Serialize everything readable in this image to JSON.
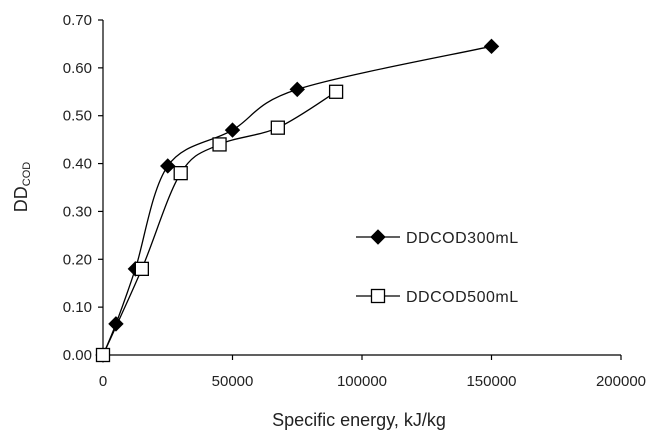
{
  "chart_data": {
    "type": "line",
    "title": "",
    "xlabel": "Specific energy, kJ/kg",
    "ylabel": {
      "main": "DD",
      "sub": "COD"
    },
    "xlim": [
      0,
      200000
    ],
    "ylim": [
      0,
      0.7
    ],
    "x_ticks": [
      0,
      50000,
      100000,
      150000,
      200000
    ],
    "x_tick_labels": [
      "0",
      "50000",
      "100000",
      "150000",
      "200000"
    ],
    "y_ticks": [
      0,
      0.1,
      0.2,
      0.3,
      0.4,
      0.5,
      0.6,
      0.7
    ],
    "y_tick_labels": [
      "0.00",
      "0.10",
      "0.20",
      "0.30",
      "0.40",
      "0.50",
      "0.60",
      "0.70"
    ],
    "grid": false,
    "legend_position": "right-middle",
    "series": [
      {
        "name": "DDCOD300mL",
        "marker": "filled-diamond",
        "color": "#000000",
        "points": [
          [
            0,
            0.0
          ],
          [
            5000,
            0.065
          ],
          [
            12500,
            0.18
          ],
          [
            25000,
            0.395
          ],
          [
            50000,
            0.47
          ],
          [
            75000,
            0.555
          ],
          [
            150000,
            0.645
          ]
        ]
      },
      {
        "name": "DDCOD500mL",
        "marker": "open-square",
        "color": "#000000",
        "points": [
          [
            0,
            0.0
          ],
          [
            15000,
            0.18
          ],
          [
            30000,
            0.38
          ],
          [
            45000,
            0.44
          ],
          [
            67500,
            0.475
          ],
          [
            90000,
            0.55
          ]
        ]
      }
    ]
  }
}
